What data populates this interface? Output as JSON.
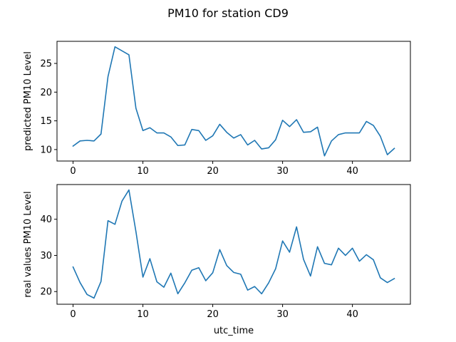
{
  "figure": {
    "title": "PM10 for station CD9"
  },
  "colors": {
    "series": "#1f77b4",
    "axes": "#000000",
    "background": "#ffffff"
  },
  "chart_data": [
    {
      "type": "line",
      "xlabel": "",
      "ylabel": "predicted PM10 Level",
      "xlim": [
        -2.3,
        48.3
      ],
      "ylim": [
        8.0,
        28.85
      ],
      "xticks": [
        0,
        10,
        20,
        30,
        40
      ],
      "yticks": [
        10,
        15,
        20,
        25
      ],
      "grid": false,
      "x": [
        0,
        1,
        2,
        3,
        4,
        5,
        6,
        7,
        8,
        9,
        10,
        11,
        12,
        13,
        14,
        15,
        16,
        17,
        18,
        19,
        20,
        21,
        22,
        23,
        24,
        25,
        26,
        27,
        28,
        29,
        30,
        31,
        32,
        33,
        34,
        35,
        36,
        37,
        38,
        39,
        40,
        41,
        42,
        43,
        44,
        45,
        46
      ],
      "series": [
        {
          "values": [
            10.6,
            11.5,
            11.6,
            11.5,
            12.7,
            22.7,
            27.9,
            27.2,
            26.5,
            17.2,
            13.3,
            13.8,
            12.9,
            12.9,
            12.2,
            10.7,
            10.8,
            13.5,
            13.3,
            11.6,
            12.4,
            14.4,
            13.0,
            12.0,
            12.6,
            10.8,
            11.6,
            10.1,
            10.3,
            11.7,
            15.1,
            14.0,
            15.2,
            13.0,
            13.1,
            13.9,
            8.9,
            11.5,
            12.6,
            12.9,
            12.9,
            12.9,
            14.9,
            14.2,
            12.3,
            9.1,
            10.2
          ]
        }
      ]
    },
    {
      "type": "line",
      "xlabel": "utc_time",
      "ylabel": "real values PM10 Level",
      "xlim": [
        -2.3,
        48.3
      ],
      "ylim": [
        16.5,
        49.6
      ],
      "xticks": [
        0,
        10,
        20,
        30,
        40
      ],
      "yticks": [
        20,
        30,
        40
      ],
      "grid": false,
      "x": [
        0,
        1,
        2,
        3,
        4,
        5,
        6,
        7,
        8,
        9,
        10,
        11,
        12,
        13,
        14,
        15,
        16,
        17,
        18,
        19,
        20,
        21,
        22,
        23,
        24,
        25,
        26,
        27,
        28,
        29,
        30,
        31,
        32,
        33,
        34,
        35,
        36,
        37,
        38,
        39,
        40,
        41,
        42,
        43,
        44,
        45,
        46
      ],
      "series": [
        {
          "values": [
            26.8,
            22.5,
            19.2,
            18.2,
            22.8,
            39.6,
            38.6,
            45.0,
            48.1,
            36.6,
            24.0,
            29.1,
            22.7,
            21.2,
            25.1,
            19.4,
            22.4,
            25.9,
            26.6,
            23.0,
            25.2,
            31.6,
            27.2,
            25.3,
            24.8,
            20.4,
            21.4,
            19.4,
            22.4,
            26.3,
            34.0,
            30.9,
            37.9,
            28.9,
            24.3,
            32.4,
            27.8,
            27.4,
            32.0,
            30.0,
            32.0,
            28.4,
            30.2,
            28.8,
            23.8,
            22.5,
            23.6
          ]
        }
      ]
    }
  ]
}
